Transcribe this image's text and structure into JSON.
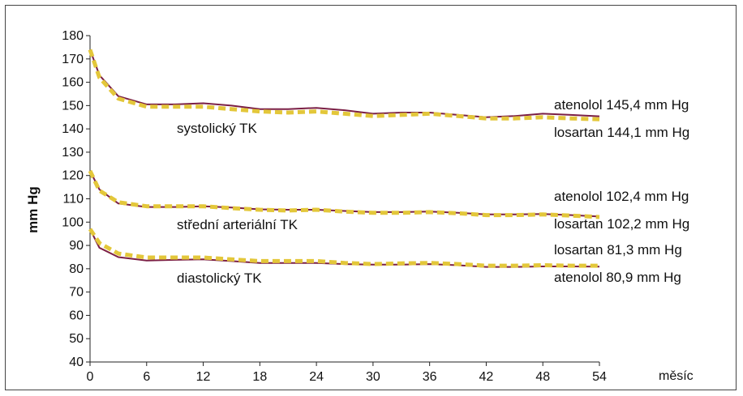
{
  "chart_data": {
    "type": "line",
    "xlabel": "měsíc",
    "ylabel": "mm Hg",
    "xlim": [
      0,
      54
    ],
    "ylim": [
      40,
      180
    ],
    "x_ticks": [
      0,
      6,
      12,
      18,
      24,
      30,
      36,
      42,
      48,
      54
    ],
    "y_ticks": [
      40,
      50,
      60,
      70,
      80,
      90,
      100,
      110,
      120,
      130,
      140,
      150,
      160,
      170,
      180
    ],
    "colors": {
      "atenolol": "#7b1f45",
      "losartan": "#e3c73a"
    },
    "groups": [
      {
        "label": "systolický TK",
        "series": [
          {
            "name": "atenolol",
            "x": [
              0,
              1,
              3,
              6,
              9,
              12,
              15,
              18,
              21,
              24,
              27,
              30,
              33,
              36,
              39,
              42,
              45,
              48,
              51,
              54
            ],
            "y": [
              174,
              163,
              154,
              150.5,
              150.5,
              151,
              150,
              148.5,
              148.5,
              149,
              148,
              146.5,
              147,
              147,
              146,
              145,
              145.5,
              146.5,
              146,
              145.4
            ]
          },
          {
            "name": "losartan",
            "x": [
              0,
              1,
              3,
              6,
              9,
              12,
              15,
              18,
              21,
              24,
              27,
              30,
              33,
              36,
              39,
              42,
              45,
              48,
              51,
              54
            ],
            "y": [
              174,
              162,
              153,
              149.5,
              149.5,
              149.5,
              148.5,
              147.5,
              147,
              147.5,
              146.5,
              145.5,
              146,
              146.5,
              145.5,
              144.5,
              144.5,
              145,
              144.5,
              144.1
            ]
          }
        ],
        "end_labels": [
          "atenolol 145,4 mm Hg",
          "losartan 144,1 mm Hg"
        ]
      },
      {
        "label": "střední arteriální TK",
        "series": [
          {
            "name": "atenolol",
            "x": [
              0,
              1,
              3,
              6,
              9,
              12,
              15,
              18,
              21,
              24,
              27,
              30,
              33,
              36,
              39,
              42,
              45,
              48,
              51,
              54
            ],
            "y": [
              122,
              114,
              108,
              106.5,
              106.5,
              106.8,
              106.3,
              105.5,
              105.3,
              105.3,
              104.8,
              104.3,
              104.3,
              104.5,
              104,
              103.3,
              103.3,
              103.5,
              103,
              102.4
            ]
          },
          {
            "name": "losartan",
            "x": [
              0,
              1,
              3,
              6,
              9,
              12,
              15,
              18,
              21,
              24,
              27,
              30,
              33,
              36,
              39,
              42,
              45,
              48,
              51,
              54
            ],
            "y": [
              122,
              113.5,
              108.5,
              106.8,
              106.8,
              106.8,
              106,
              105.3,
              105,
              105.3,
              104.5,
              104,
              104,
              104.3,
              103.8,
              103,
              103,
              103.3,
              102.8,
              102.2
            ]
          }
        ],
        "end_labels": [
          "atenolol 102,4 mm Hg",
          "losartan 102,2 mm Hg"
        ]
      },
      {
        "label": "diastolický TK",
        "series": [
          {
            "name": "atenolol",
            "x": [
              0,
              1,
              3,
              6,
              9,
              12,
              15,
              18,
              21,
              24,
              27,
              30,
              33,
              36,
              39,
              42,
              45,
              48,
              51,
              54
            ],
            "y": [
              97,
              89,
              85,
              83.5,
              83.8,
              84,
              83.3,
              82.5,
              82.5,
              82.5,
              82,
              81.8,
              81.8,
              82,
              81.5,
              80.8,
              80.8,
              81,
              81,
              80.9
            ]
          },
          {
            "name": "losartan",
            "x": [
              0,
              1,
              3,
              6,
              9,
              12,
              15,
              18,
              21,
              24,
              27,
              30,
              33,
              36,
              39,
              42,
              45,
              48,
              51,
              54
            ],
            "y": [
              97,
              91,
              86.5,
              84.8,
              84.8,
              84.8,
              84,
              83.3,
              83.3,
              83.3,
              82.5,
              82,
              82.3,
              82.5,
              82,
              81.3,
              81.3,
              81.5,
              81.3,
              81.3
            ]
          }
        ],
        "end_labels": [
          "losartan 81,3 mm Hg",
          "atenolol 80,9 mm Hg"
        ]
      }
    ]
  }
}
